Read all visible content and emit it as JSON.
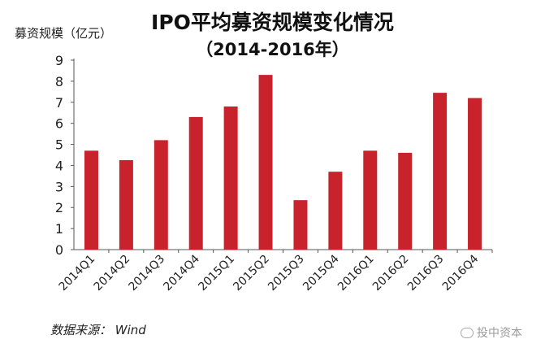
{
  "chart_data": {
    "type": "bar",
    "title": "IPO平均募资规模变化情况",
    "subtitle": "（2014-2016年）",
    "ylabel": "募资规模（亿元）",
    "xlabel": "",
    "categories": [
      "2014Q1",
      "2014Q2",
      "2014Q3",
      "2014Q4",
      "2015Q1",
      "2015Q2",
      "2015Q3",
      "2015Q4",
      "2016Q1",
      "2016Q2",
      "2016Q3",
      "2016Q4"
    ],
    "values": [
      4.7,
      4.25,
      5.2,
      6.3,
      6.8,
      8.3,
      2.35,
      3.7,
      4.7,
      4.6,
      7.45,
      7.2
    ],
    "ylim": [
      0,
      9
    ],
    "yticks": [
      0,
      1,
      2,
      3,
      4,
      5,
      6,
      7,
      8,
      9
    ],
    "bar_color": "#c8222c",
    "grid": false,
    "legend": "none"
  },
  "footer": {
    "source": "数据来源： Wind",
    "watermark": "投中资本"
  }
}
